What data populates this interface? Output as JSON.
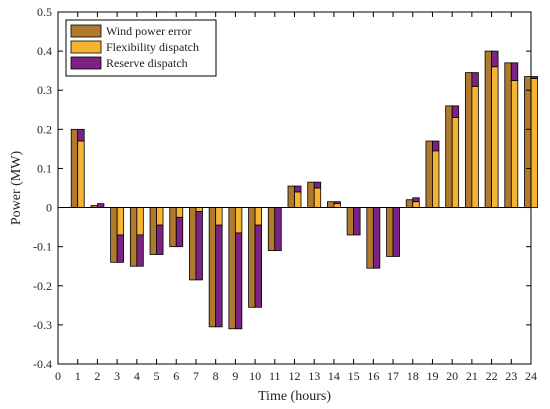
{
  "chart_data": {
    "type": "bar",
    "xlabel": "Time (hours)",
    "ylabel": "Power (MW)",
    "xlim": [
      0,
      24
    ],
    "ylim": [
      -0.4,
      0.5
    ],
    "x_ticks": [
      "0",
      "1",
      "2",
      "3",
      "4",
      "5",
      "6",
      "7",
      "8",
      "9",
      "10",
      "11",
      "12",
      "13",
      "14",
      "15",
      "16",
      "17",
      "18",
      "19",
      "20",
      "21",
      "22",
      "23",
      "24"
    ],
    "y_ticks": [
      "-0.4",
      "-0.3",
      "-0.2",
      "-0.1",
      "0",
      "0.1",
      "0.2",
      "0.3",
      "0.4",
      "0.5"
    ],
    "grid": false,
    "legend_position": "top-left",
    "categories": [
      "1",
      "2",
      "3",
      "4",
      "5",
      "6",
      "7",
      "8",
      "9",
      "10",
      "11",
      "12",
      "13",
      "14",
      "15",
      "16",
      "17",
      "18",
      "19",
      "20",
      "21",
      "22",
      "23",
      "24"
    ],
    "series": [
      {
        "name": "Wind power error",
        "color": "#B07A2E",
        "values": [
          0.2,
          0.005,
          -0.14,
          -0.15,
          -0.12,
          -0.1,
          -0.185,
          -0.305,
          -0.31,
          -0.255,
          -0.11,
          0.055,
          0.065,
          0.015,
          -0.07,
          -0.155,
          -0.125,
          0.02,
          0.17,
          0.26,
          0.345,
          0.4,
          0.37,
          0.335
        ]
      },
      {
        "name": "Flexibility dispatch",
        "color": "#F5B533",
        "values": [
          0.17,
          0.0,
          -0.07,
          -0.07,
          -0.045,
          -0.025,
          -0.01,
          -0.045,
          -0.065,
          -0.045,
          0.0,
          0.04,
          0.05,
          0.01,
          0.0,
          0.0,
          0.0,
          0.015,
          0.145,
          0.23,
          0.31,
          0.36,
          0.325,
          0.33
        ]
      },
      {
        "name": "Reserve dispatch",
        "color": "#7A2385",
        "values": [
          0.03,
          0.01,
          -0.07,
          -0.08,
          -0.075,
          -0.075,
          -0.175,
          -0.26,
          -0.245,
          -0.21,
          -0.11,
          0.015,
          0.015,
          0.005,
          -0.07,
          -0.155,
          -0.125,
          0.01,
          0.025,
          0.03,
          0.035,
          0.04,
          0.045,
          0.005
        ]
      }
    ]
  }
}
